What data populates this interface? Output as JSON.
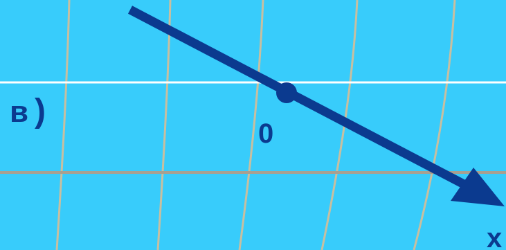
{
  "part_label": "в",
  "part_paren": ")",
  "origin_label": "0",
  "axis_label": "x",
  "colors": {
    "background": "#38ccfb",
    "axis": "#0b3a8f",
    "label": "#0b3a8f",
    "grid_light": "#ffffff",
    "grid_beige": "#c8bfa0",
    "grid_gray": "#a8a090"
  }
}
